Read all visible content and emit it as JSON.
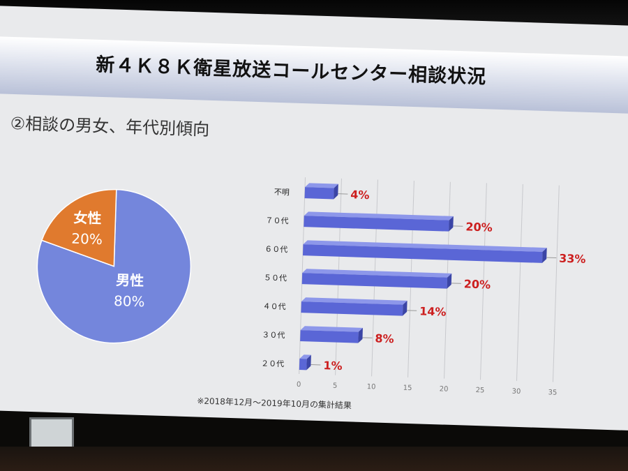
{
  "slide": {
    "title": "新４Ｋ８Ｋ衛星放送コールセンター相談状況",
    "subtitle": "②相談の男女、年代別傾向",
    "footnote": "※2018年12月～2019年10月の集計結果"
  },
  "chart_data": [
    {
      "type": "pie",
      "labels": [
        "男性",
        "女性"
      ],
      "label_texts": [
        "80%",
        "20%"
      ],
      "values": [
        80,
        20
      ],
      "colors": [
        "#7486dc",
        "#e07a2e"
      ]
    },
    {
      "type": "bar",
      "orientation": "horizontal",
      "categories": [
        "不明",
        "７０代",
        "６０代",
        "５０代",
        "４０代",
        "３０代",
        "２０代"
      ],
      "values": [
        4,
        20,
        33,
        20,
        14,
        8,
        1
      ],
      "data_labels": [
        "4%",
        "20%",
        "33%",
        "20%",
        "14%",
        "8%",
        "1%"
      ],
      "xlim": [
        0,
        35
      ],
      "xticks": [
        "0",
        "5",
        "10",
        "15",
        "20",
        "25",
        "30",
        "35"
      ],
      "bar_color": "#5a66d6",
      "label_color": "#cc1f1f",
      "grid": true
    }
  ]
}
